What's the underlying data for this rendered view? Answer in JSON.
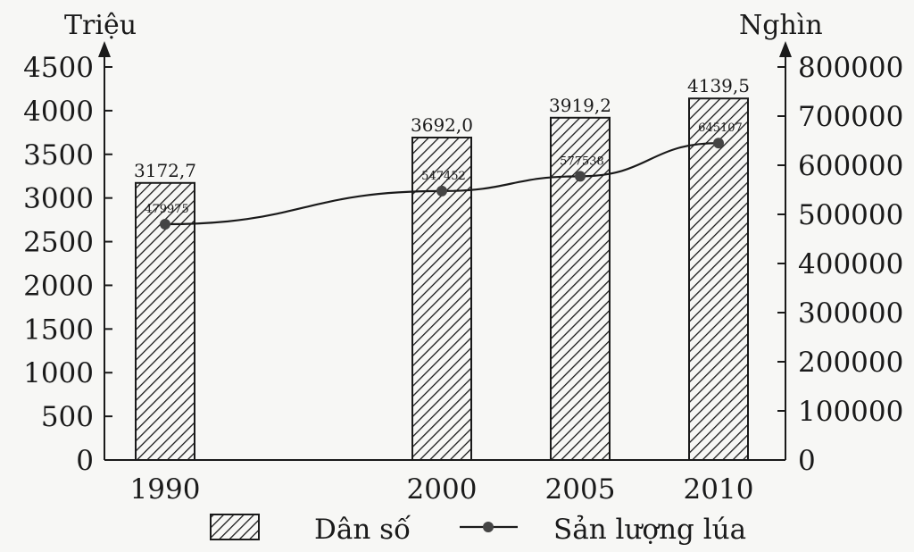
{
  "chart_data": {
    "type": "bar+line",
    "categories": [
      "1990",
      "2000",
      "2005",
      "2010"
    ],
    "x": [
      1990,
      2000,
      2005,
      2010
    ],
    "left_axis": {
      "unit_label": "Triệu",
      "ylim": [
        0,
        4500
      ],
      "ticks": [
        "0",
        "500",
        "1000",
        "1500",
        "2000",
        "2500",
        "3000",
        "3500",
        "4000",
        "4500"
      ]
    },
    "right_axis": {
      "unit_label": "Nghìn",
      "ylim": [
        0,
        800000
      ],
      "ticks": [
        "0",
        "100000",
        "200000",
        "300000",
        "400000",
        "500000",
        "600000",
        "700000",
        "800000"
      ]
    },
    "series": [
      {
        "name": "Dân số",
        "kind": "bar",
        "axis": "left",
        "values": [
          3172.7,
          3692.0,
          3919.2,
          4139.5
        ],
        "labels": [
          "3172,7",
          "3692,0",
          "3919,2",
          "4139,5"
        ]
      },
      {
        "name": "Sản lượng lúa",
        "kind": "line",
        "axis": "right",
        "values": [
          479975,
          547452,
          577538,
          645107
        ],
        "labels": [
          "479975",
          "547452",
          "577538",
          "645107"
        ]
      }
    ],
    "legend_position": "bottom",
    "grid": false
  }
}
